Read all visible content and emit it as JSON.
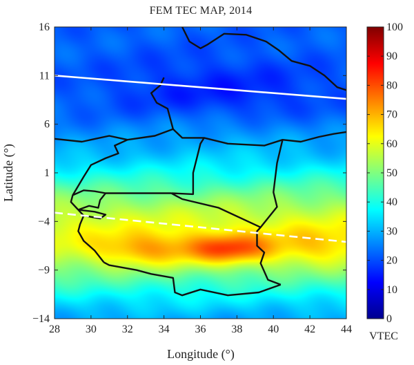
{
  "title": "FEM TEC MAP, 2014",
  "xlabel": "Longitude (°)",
  "ylabel": "Latitude (°)",
  "colorbar_label": "VTEC",
  "chart_data": {
    "type": "heatmap",
    "title": "FEM TEC MAP, 2014",
    "xlabel": "Longitude (°)",
    "ylabel": "Latitude (°)",
    "xlim": [
      28,
      44
    ],
    "ylim": [
      -14,
      16
    ],
    "x_ticks": [
      "28",
      "30",
      "32",
      "34",
      "36",
      "38",
      "40",
      "42",
      "44"
    ],
    "y_ticks": [
      "16",
      "11",
      "6",
      "1",
      "−4",
      "−9",
      "−14"
    ],
    "colorbar": {
      "label": "VTEC",
      "range": [
        0,
        100
      ],
      "ticks": [
        "0",
        "10",
        "20",
        "30",
        "40",
        "50",
        "60",
        "70",
        "80",
        "90",
        "100"
      ],
      "colormap": "jet"
    },
    "field": {
      "background_vtec": 22,
      "blobs": [
        {
          "lon": 37.6,
          "lat": -6.8,
          "sigma_lon": 2.2,
          "sigma_lat": 1.5,
          "amp": 22
        },
        {
          "lon": 33.0,
          "lat": -6.9,
          "sigma_lon": 3.0,
          "sigma_lat": 1.7,
          "amp": 14
        },
        {
          "lon": 42.5,
          "lat": -6.6,
          "sigma_lon": 3.0,
          "sigma_lat": 2.0,
          "amp": 9
        },
        {
          "lon": 37.0,
          "lat": 5.5,
          "sigma_lon": 5.0,
          "sigma_lat": 2.5,
          "amp": 4
        }
      ]
    },
    "lines": [
      {
        "name": "white solid line",
        "style": "solid",
        "color": "#ffffff",
        "points": [
          [
            28,
            11
          ],
          [
            44,
            8.6
          ]
        ]
      },
      {
        "name": "white dashed line",
        "style": "dashed",
        "color": "#ffffff",
        "points": [
          [
            28,
            -3.1
          ],
          [
            44,
            -6.1
          ]
        ]
      }
    ],
    "boundaries": [
      [
        [
          28.0,
          4.5
        ],
        [
          29.5,
          4.2
        ],
        [
          31.0,
          4.8
        ],
        [
          32.0,
          4.4
        ],
        [
          33.5,
          4.8
        ],
        [
          34.5,
          5.5
        ],
        [
          35.0,
          4.6
        ],
        [
          36.2,
          4.6
        ],
        [
          37.5,
          4.0
        ],
        [
          38.5,
          3.9
        ],
        [
          39.5,
          3.8
        ],
        [
          40.5,
          4.4
        ],
        [
          41.5,
          4.2
        ],
        [
          42.5,
          4.7
        ],
        [
          43.3,
          5.0
        ],
        [
          44.0,
          5.2
        ]
      ],
      [
        [
          34.0,
          10.8
        ],
        [
          33.8,
          10.0
        ],
        [
          33.3,
          9.2
        ],
        [
          33.6,
          8.2
        ],
        [
          34.2,
          7.6
        ],
        [
          34.5,
          5.5
        ]
      ],
      [
        [
          35.0,
          16.0
        ],
        [
          35.4,
          14.5
        ],
        [
          36.0,
          13.8
        ],
        [
          36.4,
          14.2
        ],
        [
          37.3,
          15.3
        ],
        [
          38.5,
          15.2
        ],
        [
          39.6,
          14.5
        ],
        [
          40.3,
          13.6
        ],
        [
          41.0,
          12.5
        ],
        [
          42.0,
          12.0
        ],
        [
          42.8,
          11.0
        ],
        [
          43.5,
          9.8
        ],
        [
          44.0,
          9.5
        ]
      ],
      [
        [
          36.2,
          4.6
        ],
        [
          36.0,
          4.0
        ],
        [
          35.6,
          1.0
        ],
        [
          35.6,
          -1.2
        ],
        [
          34.4,
          -1.1
        ]
      ],
      [
        [
          30.8,
          -1.1
        ],
        [
          34.4,
          -1.1
        ]
      ],
      [
        [
          34.4,
          -1.1
        ],
        [
          35.0,
          -1.7
        ],
        [
          37.0,
          -2.6
        ],
        [
          39.3,
          -4.6
        ]
      ],
      [
        [
          40.5,
          4.4
        ],
        [
          40.2,
          2.0
        ],
        [
          40.0,
          -1.0
        ],
        [
          40.2,
          -2.5
        ],
        [
          39.3,
          -4.6
        ],
        [
          39.1,
          -5.0
        ],
        [
          39.1,
          -6.5
        ],
        [
          39.5,
          -7.2
        ],
        [
          39.3,
          -8.3
        ],
        [
          39.7,
          -10.0
        ],
        [
          40.4,
          -10.5
        ]
      ],
      [
        [
          40.4,
          -10.5
        ],
        [
          39.2,
          -11.3
        ],
        [
          37.5,
          -11.6
        ],
        [
          36.0,
          -11.0
        ],
        [
          35.0,
          -11.6
        ],
        [
          34.6,
          -11.3
        ],
        [
          34.5,
          -9.8
        ],
        [
          33.3,
          -9.4
        ],
        [
          32.5,
          -9.0
        ],
        [
          31.0,
          -8.5
        ],
        [
          30.7,
          -8.2
        ]
      ],
      [
        [
          30.7,
          -8.2
        ],
        [
          30.2,
          -7.0
        ],
        [
          29.6,
          -6.0
        ],
        [
          29.3,
          -5.0
        ],
        [
          29.4,
          -4.3
        ],
        [
          29.6,
          -3.4
        ],
        [
          29.3,
          -2.8
        ]
      ],
      [
        [
          29.3,
          -2.8
        ],
        [
          28.9,
          -2.0
        ],
        [
          29.0,
          -1.3
        ],
        [
          29.6,
          -0.8
        ],
        [
          30.2,
          -0.9
        ],
        [
          30.8,
          -1.1
        ],
        [
          30.5,
          -1.8
        ],
        [
          30.4,
          -2.6
        ],
        [
          29.9,
          -2.4
        ],
        [
          29.3,
          -2.8
        ]
      ],
      [
        [
          29.0,
          -1.3
        ],
        [
          29.6,
          0.6
        ],
        [
          30.0,
          1.8
        ],
        [
          30.8,
          2.5
        ],
        [
          31.5,
          3.0
        ],
        [
          31.3,
          3.8
        ],
        [
          32.0,
          4.4
        ]
      ],
      [
        [
          29.3,
          -2.8
        ],
        [
          30.2,
          -3.0
        ],
        [
          30.8,
          -3.3
        ],
        [
          30.5,
          -3.7
        ],
        [
          29.6,
          -3.4
        ]
      ]
    ]
  }
}
